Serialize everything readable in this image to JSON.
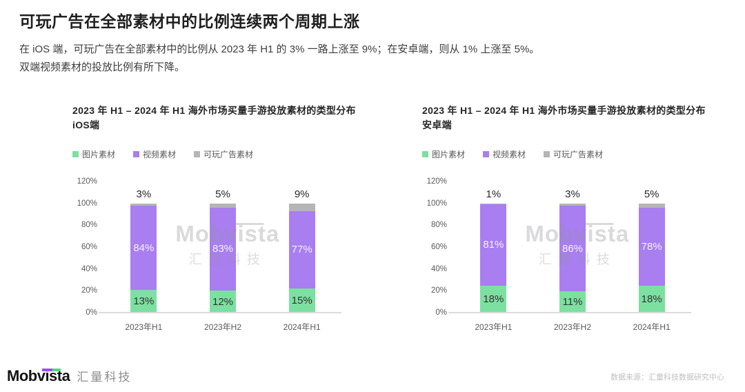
{
  "page": {
    "title": "可玩广告在全部素材中的比例连续两个周期上涨",
    "subtitle_line1": "在 iOS 端，可玩广告在全部素材中的比例从 2023 年 H1 的 3% 一路上涨至 9%；在安卓端，则从 1% 上涨至 5%。",
    "subtitle_line2": "双端视频素材的投放比例有所下降。"
  },
  "watermark": {
    "line1": "Mobvista",
    "line2": "汇量科技"
  },
  "footer": {
    "logo_en": "Mobvista",
    "logo_cn": "汇量科技",
    "source": "数据来源：汇量科技数据研究中心"
  },
  "colors": {
    "image_material": "#7ce0a0",
    "video_material": "#a87ef0",
    "playable_material": "#b5b5b5",
    "axis_text": "#595959",
    "baseline": "#dbdbdb"
  },
  "chart_data": [
    {
      "type": "bar",
      "stacked": true,
      "title": "2023 年 H1 – 2024 年 H1 海外市场买量手游投放素材的类型分布",
      "platform": "iOS端",
      "categories": [
        "2023年H1",
        "2023年H2",
        "2024年H1"
      ],
      "series": [
        {
          "key": "image",
          "name": "图片素材",
          "color": "#7ce0a0",
          "values": [
            13,
            12,
            15
          ],
          "label_position": "inside",
          "label_color": "#333333"
        },
        {
          "key": "video",
          "name": "视频素材",
          "color": "#a87ef0",
          "values": [
            84,
            83,
            77
          ],
          "label_position": "inside",
          "label_color": "#f7f3ff"
        },
        {
          "key": "playable",
          "name": "可玩广告素材",
          "color": "#b5b5b5",
          "values": [
            3,
            5,
            9
          ],
          "label_position": "top",
          "label_color": "#262626"
        }
      ],
      "yticks": [
        "0%",
        "20%",
        "40%",
        "60%",
        "80%",
        "100%",
        "120%"
      ],
      "ylim": [
        0,
        120
      ],
      "grid": false,
      "legend_position": "top"
    },
    {
      "type": "bar",
      "stacked": true,
      "title": "2023 年 H1 – 2024 年 H1 海外市场买量手游投放素材的类型分布",
      "platform": "安卓端",
      "categories": [
        "2023年H1",
        "2023年H2",
        "2024年H1"
      ],
      "series": [
        {
          "key": "image",
          "name": "图片素材",
          "color": "#7ce0a0",
          "values": [
            18,
            11,
            18
          ],
          "label_position": "inside",
          "label_color": "#333333"
        },
        {
          "key": "video",
          "name": "视频素材",
          "color": "#a87ef0",
          "values": [
            81,
            86,
            78
          ],
          "label_position": "inside",
          "label_color": "#f7f3ff"
        },
        {
          "key": "playable",
          "name": "可玩广告素材",
          "color": "#b5b5b5",
          "values": [
            1,
            3,
            5
          ],
          "label_position": "top",
          "label_color": "#262626"
        }
      ],
      "yticks": [
        "0%",
        "20%",
        "40%",
        "60%",
        "80%",
        "100%",
        "120%"
      ],
      "ylim": [
        0,
        120
      ],
      "grid": false,
      "legend_position": "top"
    }
  ]
}
